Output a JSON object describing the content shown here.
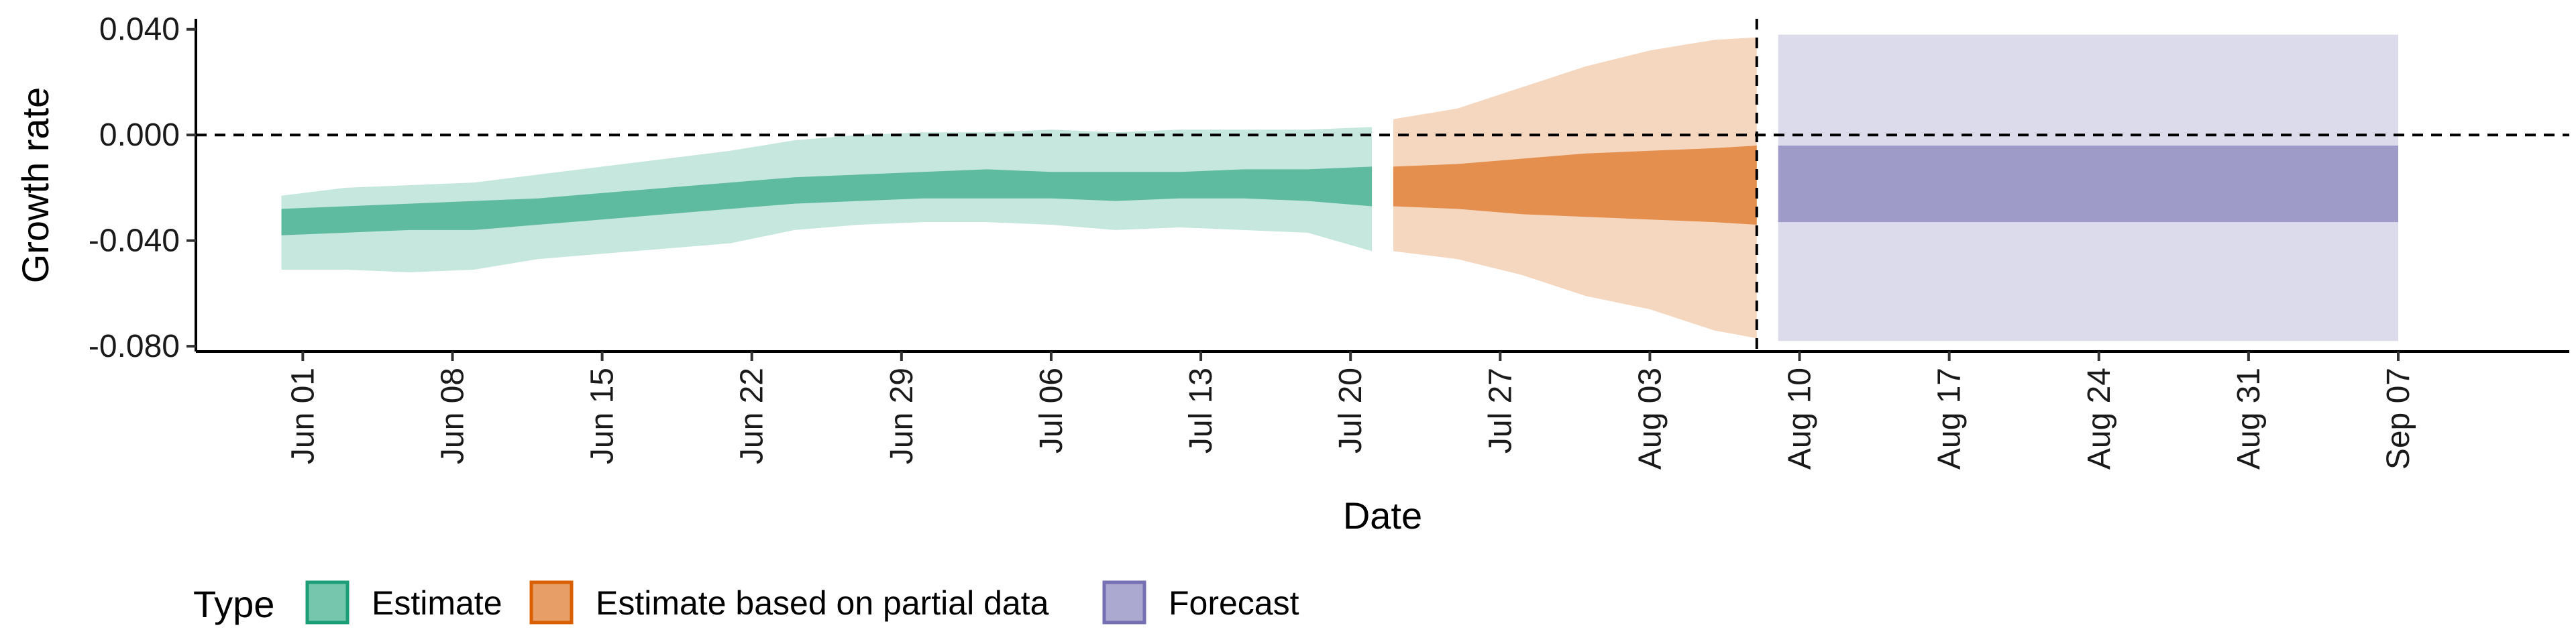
{
  "chart_data": {
    "type": "area",
    "title": "",
    "xlabel": "Date",
    "ylabel": "Growth rate",
    "x_type": "date",
    "xlim": [
      "2021-05-27",
      "2021-09-15"
    ],
    "ylim": [
      -0.082,
      0.044
    ],
    "x_ticks": [
      {
        "date": "2021-06-01",
        "label": "Jun 01"
      },
      {
        "date": "2021-06-08",
        "label": "Jun 08"
      },
      {
        "date": "2021-06-15",
        "label": "Jun 15"
      },
      {
        "date": "2021-06-22",
        "label": "Jun 22"
      },
      {
        "date": "2021-06-29",
        "label": "Jun 29"
      },
      {
        "date": "2021-07-06",
        "label": "Jul 06"
      },
      {
        "date": "2021-07-13",
        "label": "Jul 13"
      },
      {
        "date": "2021-07-20",
        "label": "Jul 20"
      },
      {
        "date": "2021-07-27",
        "label": "Jul 27"
      },
      {
        "date": "2021-08-03",
        "label": "Aug 03"
      },
      {
        "date": "2021-08-10",
        "label": "Aug 10"
      },
      {
        "date": "2021-08-17",
        "label": "Aug 17"
      },
      {
        "date": "2021-08-24",
        "label": "Aug 24"
      },
      {
        "date": "2021-08-31",
        "label": "Aug 31"
      },
      {
        "date": "2021-09-07",
        "label": "Sep 07"
      }
    ],
    "y_ticks": [
      {
        "value": 0.04,
        "label": "0.040"
      },
      {
        "value": 0.0,
        "label": "0.000"
      },
      {
        "value": -0.04,
        "label": "-0.040"
      },
      {
        "value": -0.08,
        "label": "-0.080"
      }
    ],
    "reference_lines": [
      {
        "axis": "y",
        "value": 0.0,
        "style": "dashed"
      },
      {
        "axis": "x",
        "value": "2021-08-08",
        "style": "dashed"
      }
    ],
    "grid": false,
    "legend": {
      "position": "bottom-left",
      "title": "Type"
    },
    "series": [
      {
        "name": "Estimate",
        "color": "#1b9e77",
        "x": [
          "2021-05-31",
          "2021-06-03",
          "2021-06-06",
          "2021-06-09",
          "2021-06-12",
          "2021-06-15",
          "2021-06-18",
          "2021-06-21",
          "2021-06-24",
          "2021-06-27",
          "2021-06-30",
          "2021-07-03",
          "2021-07-06",
          "2021-07-09",
          "2021-07-12",
          "2021-07-15",
          "2021-07-18",
          "2021-07-21"
        ],
        "lower90": [
          -0.051,
          -0.051,
          -0.052,
          -0.051,
          -0.047,
          -0.045,
          -0.043,
          -0.041,
          -0.036,
          -0.034,
          -0.033,
          -0.033,
          -0.034,
          -0.036,
          -0.035,
          -0.036,
          -0.037,
          -0.044
        ],
        "upper90": [
          -0.023,
          -0.02,
          -0.019,
          -0.018,
          -0.015,
          -0.012,
          -0.009,
          -0.006,
          -0.002,
          0.0,
          0.001,
          0.001,
          0.002,
          0.001,
          0.002,
          0.002,
          0.002,
          0.003
        ],
        "lower50": [
          -0.038,
          -0.037,
          -0.036,
          -0.036,
          -0.034,
          -0.032,
          -0.03,
          -0.028,
          -0.026,
          -0.025,
          -0.024,
          -0.024,
          -0.024,
          -0.025,
          -0.024,
          -0.024,
          -0.025,
          -0.027
        ],
        "upper50": [
          -0.028,
          -0.027,
          -0.026,
          -0.025,
          -0.024,
          -0.022,
          -0.02,
          -0.018,
          -0.016,
          -0.015,
          -0.014,
          -0.013,
          -0.014,
          -0.014,
          -0.014,
          -0.013,
          -0.013,
          -0.012
        ]
      },
      {
        "name": "Estimate based on partial data",
        "color": "#d95f02",
        "x": [
          "2021-07-22",
          "2021-07-25",
          "2021-07-28",
          "2021-07-31",
          "2021-08-03",
          "2021-08-06",
          "2021-08-08"
        ],
        "lower90": [
          -0.044,
          -0.047,
          -0.053,
          -0.061,
          -0.066,
          -0.074,
          -0.077
        ],
        "upper90": [
          0.006,
          0.01,
          0.018,
          0.026,
          0.032,
          0.036,
          0.037
        ],
        "lower50": [
          -0.027,
          -0.028,
          -0.03,
          -0.031,
          -0.032,
          -0.033,
          -0.034
        ],
        "upper50": [
          -0.012,
          -0.011,
          -0.009,
          -0.007,
          -0.006,
          -0.005,
          -0.004
        ]
      },
      {
        "name": "Forecast",
        "color": "#7570b3",
        "x": [
          "2021-08-09",
          "2021-09-07"
        ],
        "lower90": [
          -0.078,
          -0.078
        ],
        "upper90": [
          0.038,
          0.038
        ],
        "lower50": [
          -0.033,
          -0.033
        ],
        "upper50": [
          -0.004,
          -0.004
        ]
      }
    ]
  }
}
